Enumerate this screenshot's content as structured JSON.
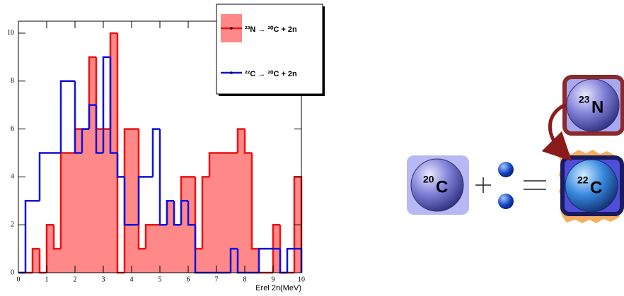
{
  "chart_data": {
    "type": "histogram",
    "xlabel": "Erel 2n(MeV)",
    "bins": [
      0,
      0.25,
      0.5,
      0.75,
      1,
      1.25,
      1.5,
      1.75,
      2,
      2.25,
      2.5,
      2.75,
      3,
      3.25,
      3.5,
      3.75,
      4,
      4.25,
      4.5,
      4.75,
      5,
      5.25,
      5.5,
      5.75,
      6,
      6.25,
      6.5,
      6.75,
      7,
      7.25,
      7.5,
      7.75,
      8,
      8.25,
      8.5,
      8.75,
      9,
      9.25,
      9.5,
      9.75,
      10
    ],
    "series": [
      {
        "name": "²³N → ²⁰C + 2n",
        "color": "#ee1111",
        "fill": "#ff8888",
        "values": [
          0,
          0,
          1,
          0,
          2,
          1,
          5,
          5,
          6,
          6,
          9,
          6,
          6,
          10,
          0,
          6,
          6,
          1,
          2,
          2,
          2,
          3,
          2,
          4,
          4,
          1,
          4,
          5,
          5,
          5,
          5,
          6,
          5,
          1,
          0,
          0,
          2,
          0,
          0,
          4
        ]
      },
      {
        "name": "²²C → ²⁰C + 2n",
        "color": "#1111dd",
        "values": [
          0,
          3,
          3,
          5,
          5,
          5,
          8,
          8,
          5,
          6,
          7,
          5,
          9,
          5,
          4,
          2,
          2,
          4,
          4,
          6,
          2,
          3,
          2,
          3,
          2,
          0,
          0,
          0,
          0,
          0,
          1,
          0,
          0,
          0,
          1,
          1,
          1,
          0,
          1,
          1
        ]
      }
    ],
    "xlim": [
      0,
      10
    ],
    "xticks": [
      0,
      1,
      2,
      3,
      4,
      5,
      6,
      7,
      8,
      9,
      10
    ],
    "ylim": [
      0,
      10.5
    ],
    "yticks": [
      0,
      2,
      4,
      6,
      8,
      10
    ],
    "legend": "top-right"
  },
  "diagram": {
    "nucleus_20c": {
      "mass": "20",
      "symbol": "C"
    },
    "nucleus_22c": {
      "mass": "22",
      "symbol": "C"
    },
    "nucleus_23n": {
      "mass": "23",
      "symbol": "N"
    }
  }
}
